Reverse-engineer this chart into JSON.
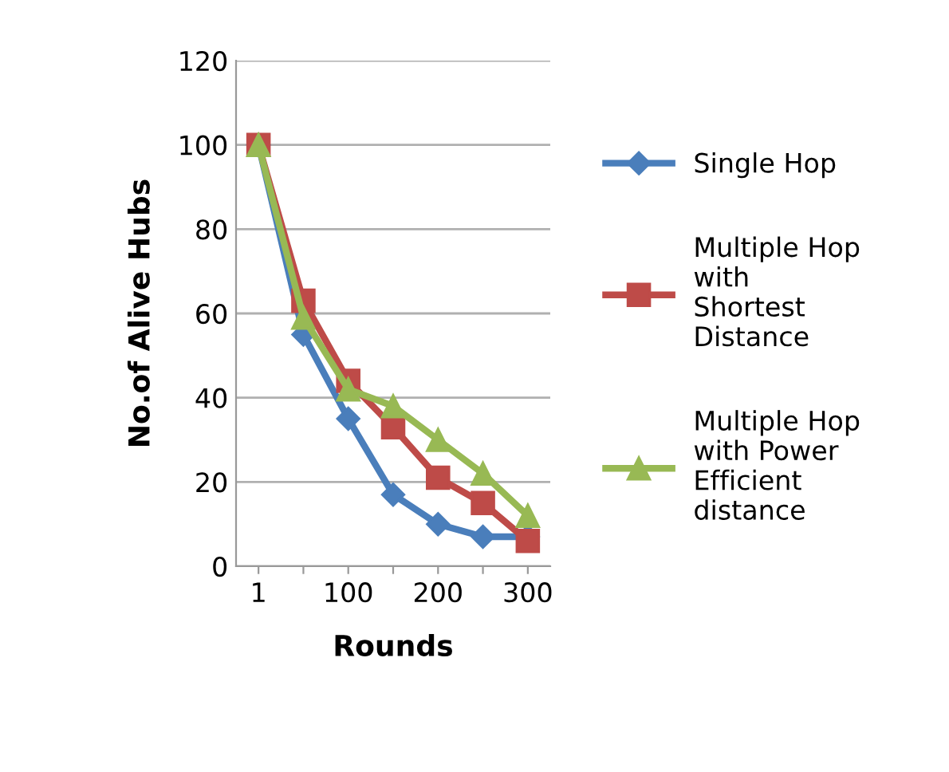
{
  "chart_data": {
    "type": "line",
    "xlabel": "Rounds",
    "ylabel": "No.of Alive Hubs",
    "categories": [
      "1",
      null,
      "100",
      null,
      "200",
      null,
      "300"
    ],
    "series": [
      {
        "name": "Single Hop",
        "color": "#4a7ebb",
        "marker": "diamond",
        "values": [
          100,
          55,
          35,
          17,
          10,
          7,
          7
        ]
      },
      {
        "name": "Multiple Hop\nwith\nShortest\nDistance",
        "color": "#be4b48",
        "marker": "square",
        "values": [
          100,
          63,
          44,
          33,
          21,
          15,
          6
        ]
      },
      {
        "name": "Multiple Hop\nwith Power\nEfficient\ndistance",
        "color": "#98b954",
        "marker": "triangle",
        "values": [
          100,
          59,
          42,
          38,
          30,
          22,
          12
        ]
      }
    ],
    "ylim": [
      0,
      120
    ],
    "yticks": [
      0,
      20,
      40,
      60,
      80,
      100,
      120
    ],
    "grid": "y",
    "legend": "right",
    "line_style": "solid"
  }
}
